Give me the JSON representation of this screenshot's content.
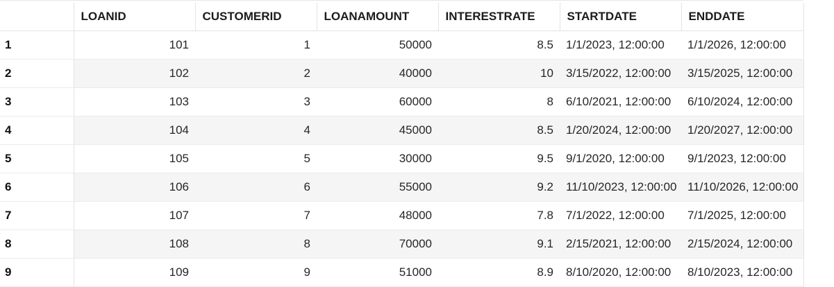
{
  "columns": [
    "LOANID",
    "CUSTOMERID",
    "LOANAMOUNT",
    "INTERESTRATE",
    "STARTDATE",
    "ENDDATE"
  ],
  "rows": [
    {
      "index": "1",
      "loanid": "101",
      "customerid": "1",
      "loanamount": "50000",
      "interestrate": "8.5",
      "startdate": "1/1/2023, 12:00:00",
      "enddate": "1/1/2026, 12:00:00"
    },
    {
      "index": "2",
      "loanid": "102",
      "customerid": "2",
      "loanamount": "40000",
      "interestrate": "10",
      "startdate": "3/15/2022, 12:00:00",
      "enddate": "3/15/2025, 12:00:00"
    },
    {
      "index": "3",
      "loanid": "103",
      "customerid": "3",
      "loanamount": "60000",
      "interestrate": "8",
      "startdate": "6/10/2021, 12:00:00",
      "enddate": "6/10/2024, 12:00:00"
    },
    {
      "index": "4",
      "loanid": "104",
      "customerid": "4",
      "loanamount": "45000",
      "interestrate": "8.5",
      "startdate": "1/20/2024, 12:00:00",
      "enddate": "1/20/2027, 12:00:00"
    },
    {
      "index": "5",
      "loanid": "105",
      "customerid": "5",
      "loanamount": "30000",
      "interestrate": "9.5",
      "startdate": "9/1/2020, 12:00:00",
      "enddate": "9/1/2023, 12:00:00"
    },
    {
      "index": "6",
      "loanid": "106",
      "customerid": "6",
      "loanamount": "55000",
      "interestrate": "9.2",
      "startdate": "11/10/2023, 12:00:00",
      "enddate": "11/10/2026, 12:00:00"
    },
    {
      "index": "7",
      "loanid": "107",
      "customerid": "7",
      "loanamount": "48000",
      "interestrate": "7.8",
      "startdate": "7/1/2022, 12:00:00",
      "enddate": "7/1/2025, 12:00:00"
    },
    {
      "index": "8",
      "loanid": "108",
      "customerid": "8",
      "loanamount": "70000",
      "interestrate": "9.1",
      "startdate": "2/15/2021, 12:00:00",
      "enddate": "2/15/2024, 12:00:00"
    },
    {
      "index": "9",
      "loanid": "109",
      "customerid": "9",
      "loanamount": "51000",
      "interestrate": "8.9",
      "startdate": "8/10/2020, 12:00:00",
      "enddate": "8/10/2023, 12:00:00"
    }
  ]
}
